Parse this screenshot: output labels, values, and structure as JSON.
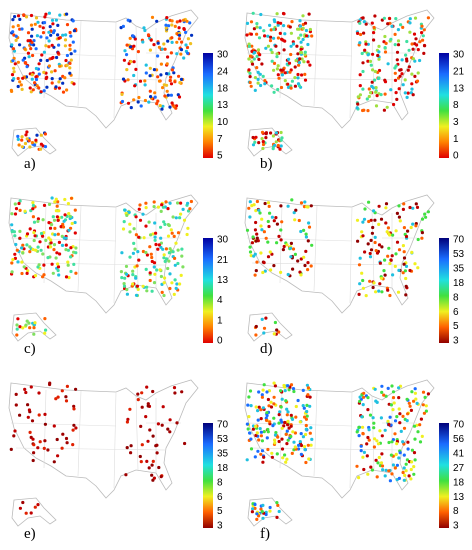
{
  "panels": [
    {
      "label": "a)",
      "colorbar_ticks": [
        30,
        24,
        18,
        13,
        10,
        7,
        5
      ]
    },
    {
      "label": "b)",
      "colorbar_ticks": [
        30,
        21,
        13,
        8,
        3,
        1,
        0
      ]
    },
    {
      "label": "c)",
      "colorbar_ticks": [
        30,
        21,
        13,
        4,
        1,
        0
      ]
    },
    {
      "label": "d)",
      "colorbar_ticks": [
        70,
        53,
        35,
        18,
        8,
        6,
        5,
        3
      ]
    },
    {
      "label": "e)",
      "colorbar_ticks": [
        70,
        53,
        35,
        18,
        8,
        6,
        5,
        3
      ]
    },
    {
      "label": "f)",
      "colorbar_ticks": [
        70,
        56,
        41,
        27,
        18,
        13,
        8,
        3
      ]
    }
  ]
}
